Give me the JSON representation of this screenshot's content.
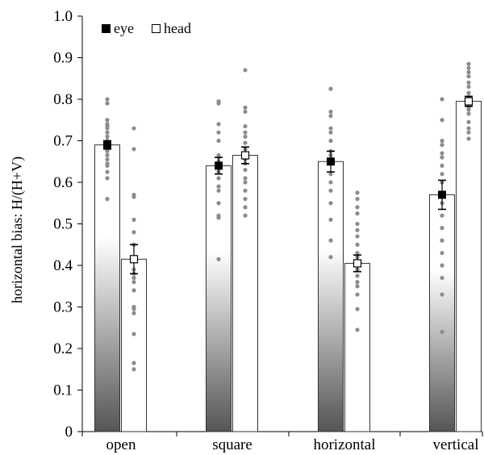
{
  "chart_data": {
    "type": "bar",
    "title": "",
    "xlabel": "",
    "ylabel": "horizontal bias: H/(H+V)",
    "ylim": [
      0,
      1.0
    ],
    "yticks": [
      "0",
      "0.1",
      "0.2",
      "0.3",
      "0.4",
      "0.5",
      "0.6",
      "0.7",
      "0.8",
      "0.9",
      "1.0"
    ],
    "grid": false,
    "legend_position": "top-left",
    "categories": [
      "open",
      "square",
      "horizontal",
      "vertical"
    ],
    "series": [
      {
        "name": "eye",
        "marker": "filled-square",
        "values": [
          0.69,
          0.64,
          0.65,
          0.57
        ],
        "errors": [
          0.01,
          0.02,
          0.025,
          0.035
        ],
        "points": [
          [
            0.8,
            0.79,
            0.75,
            0.74,
            0.735,
            0.73,
            0.72,
            0.71,
            0.7,
            0.69,
            0.68,
            0.675,
            0.665,
            0.655,
            0.645,
            0.64,
            0.625,
            0.61,
            0.56
          ],
          [
            0.795,
            0.79,
            0.74,
            0.72,
            0.7,
            0.665,
            0.66,
            0.65,
            0.635,
            0.625,
            0.61,
            0.59,
            0.58,
            0.55,
            0.52,
            0.515,
            0.415
          ],
          [
            0.825,
            0.77,
            0.76,
            0.73,
            0.72,
            0.7,
            0.675,
            0.665,
            0.655,
            0.645,
            0.62,
            0.6,
            0.58,
            0.55,
            0.51,
            0.46,
            0.42
          ],
          [
            0.8,
            0.75,
            0.7,
            0.69,
            0.67,
            0.66,
            0.64,
            0.62,
            0.6,
            0.55,
            0.52,
            0.49,
            0.46,
            0.43,
            0.4,
            0.37,
            0.33,
            0.24
          ]
        ]
      },
      {
        "name": "head",
        "marker": "open-square",
        "values": [
          0.415,
          0.665,
          0.405,
          0.795
        ],
        "errors": [
          0.035,
          0.02,
          0.02,
          0.012
        ],
        "points": [
          [
            0.73,
            0.68,
            0.57,
            0.565,
            0.51,
            0.48,
            0.45,
            0.42,
            0.39,
            0.38,
            0.37,
            0.36,
            0.34,
            0.3,
            0.295,
            0.285,
            0.235,
            0.165,
            0.15
          ],
          [
            0.87,
            0.78,
            0.77,
            0.735,
            0.72,
            0.71,
            0.695,
            0.68,
            0.665,
            0.655,
            0.645,
            0.63,
            0.61,
            0.6,
            0.58,
            0.56,
            0.54,
            0.52
          ],
          [
            0.575,
            0.56,
            0.54,
            0.525,
            0.5,
            0.485,
            0.47,
            0.45,
            0.43,
            0.42,
            0.41,
            0.4,
            0.39,
            0.375,
            0.36,
            0.35,
            0.33,
            0.295,
            0.245
          ],
          [
            0.885,
            0.875,
            0.865,
            0.855,
            0.84,
            0.83,
            0.815,
            0.805,
            0.8,
            0.79,
            0.78,
            0.775,
            0.765,
            0.745,
            0.73,
            0.72,
            0.705
          ]
        ]
      }
    ]
  },
  "colors": {
    "axis": "#000000",
    "bar_edge": "#333333",
    "gradient_top": "#ffffff",
    "gradient_bottom": "#555555",
    "dots": "#8c8c8c",
    "eye_marker": "#000000",
    "head_marker_fill": "#ffffff"
  }
}
